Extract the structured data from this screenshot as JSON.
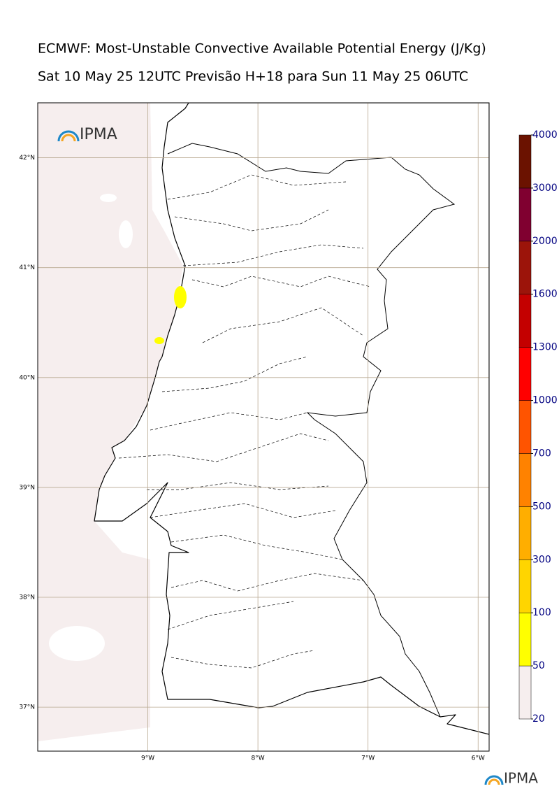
{
  "title": "ECMWF: Most-Unstable Convective Available Potential Energy (J/Kg)",
  "subtitle": "Sat 10 May 25 12UTC Previsão H+18 para Sun 11 May 25 06UTC",
  "logo_text": "IPMA",
  "map": {
    "lonlim": [
      -10,
      -5.9
    ],
    "latlim": [
      36.6,
      42.5
    ],
    "lonticks": [
      {
        "value": -9,
        "label": "9°W"
      },
      {
        "value": -8,
        "label": "8°W"
      },
      {
        "value": -7,
        "label": "7°W"
      },
      {
        "value": -6,
        "label": "6°W"
      }
    ],
    "latticks": [
      {
        "value": 42,
        "label": "42°N"
      },
      {
        "value": 41,
        "label": "41°N"
      },
      {
        "value": 40,
        "label": "40°N"
      },
      {
        "value": 39,
        "label": "39°N"
      },
      {
        "value": 38,
        "label": "38°N"
      },
      {
        "value": 37,
        "label": "37°N"
      }
    ],
    "grid_color": "#b8a890"
  },
  "colorbar": {
    "levels": [
      20,
      50,
      100,
      300,
      500,
      700,
      1000,
      1300,
      1600,
      2000,
      3000,
      4000
    ],
    "colors": [
      "#f6eeee",
      "#ffff00",
      "#ffd500",
      "#ffae00",
      "#ff8200",
      "#ff5400",
      "#ff0000",
      "#c40000",
      "#9c140a",
      "#800030",
      "#6b1200"
    ]
  }
}
